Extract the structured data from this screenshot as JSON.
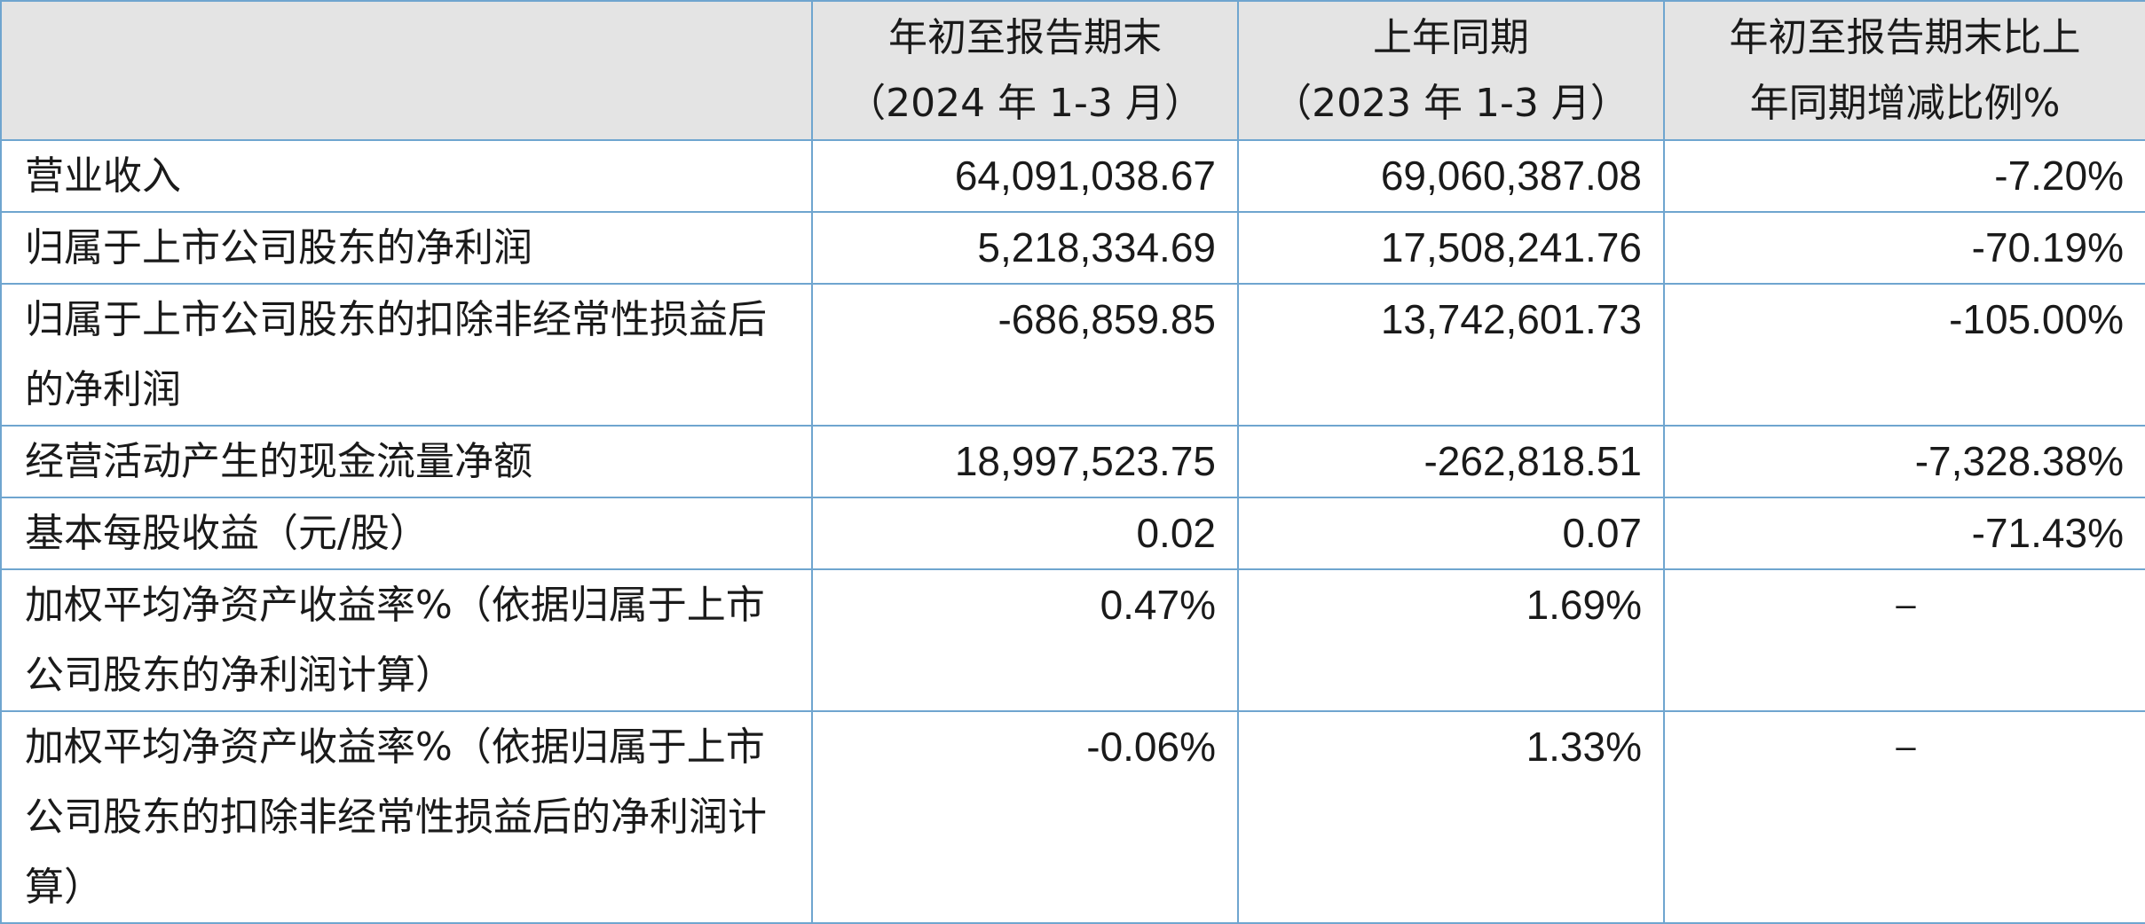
{
  "table": {
    "header": {
      "col1": {
        "line1": "年初至报告期末",
        "line2": "（2024 年 1-3 月）"
      },
      "col2": {
        "line1": "上年同期",
        "line2": "（2023 年 1-3 月）"
      },
      "col3": {
        "line1": "年初至报告期末比上",
        "line2": "年同期增减比例%"
      }
    },
    "rows": [
      {
        "label": "营业收入",
        "current": "64,091,038.67",
        "prior": "69,060,387.08",
        "change": "-7.20%"
      },
      {
        "label": "归属于上市公司股东的净利润",
        "current": "5,218,334.69",
        "prior": "17,508,241.76",
        "change": "-70.19%"
      },
      {
        "label": "归属于上市公司股东的扣除非经常性损益后的净利润",
        "current": "-686,859.85",
        "prior": "13,742,601.73",
        "change": "-105.00%"
      },
      {
        "label": "经营活动产生的现金流量净额",
        "current": "18,997,523.75",
        "prior": "-262,818.51",
        "change": "-7,328.38%"
      },
      {
        "label": "基本每股收益（元/股）",
        "current": "0.02",
        "prior": "0.07",
        "change": "-71.43%"
      },
      {
        "label": "加权平均净资产收益率%（依据归属于上市公司股东的净利润计算）",
        "current": "0.47%",
        "prior": "1.69%",
        "change": "–"
      },
      {
        "label": "加权平均净资产收益率%（依据归属于上市公司股东的扣除非经常性损益后的净利润计算）",
        "current": "-0.06%",
        "prior": "1.33%",
        "change": "–"
      }
    ]
  }
}
